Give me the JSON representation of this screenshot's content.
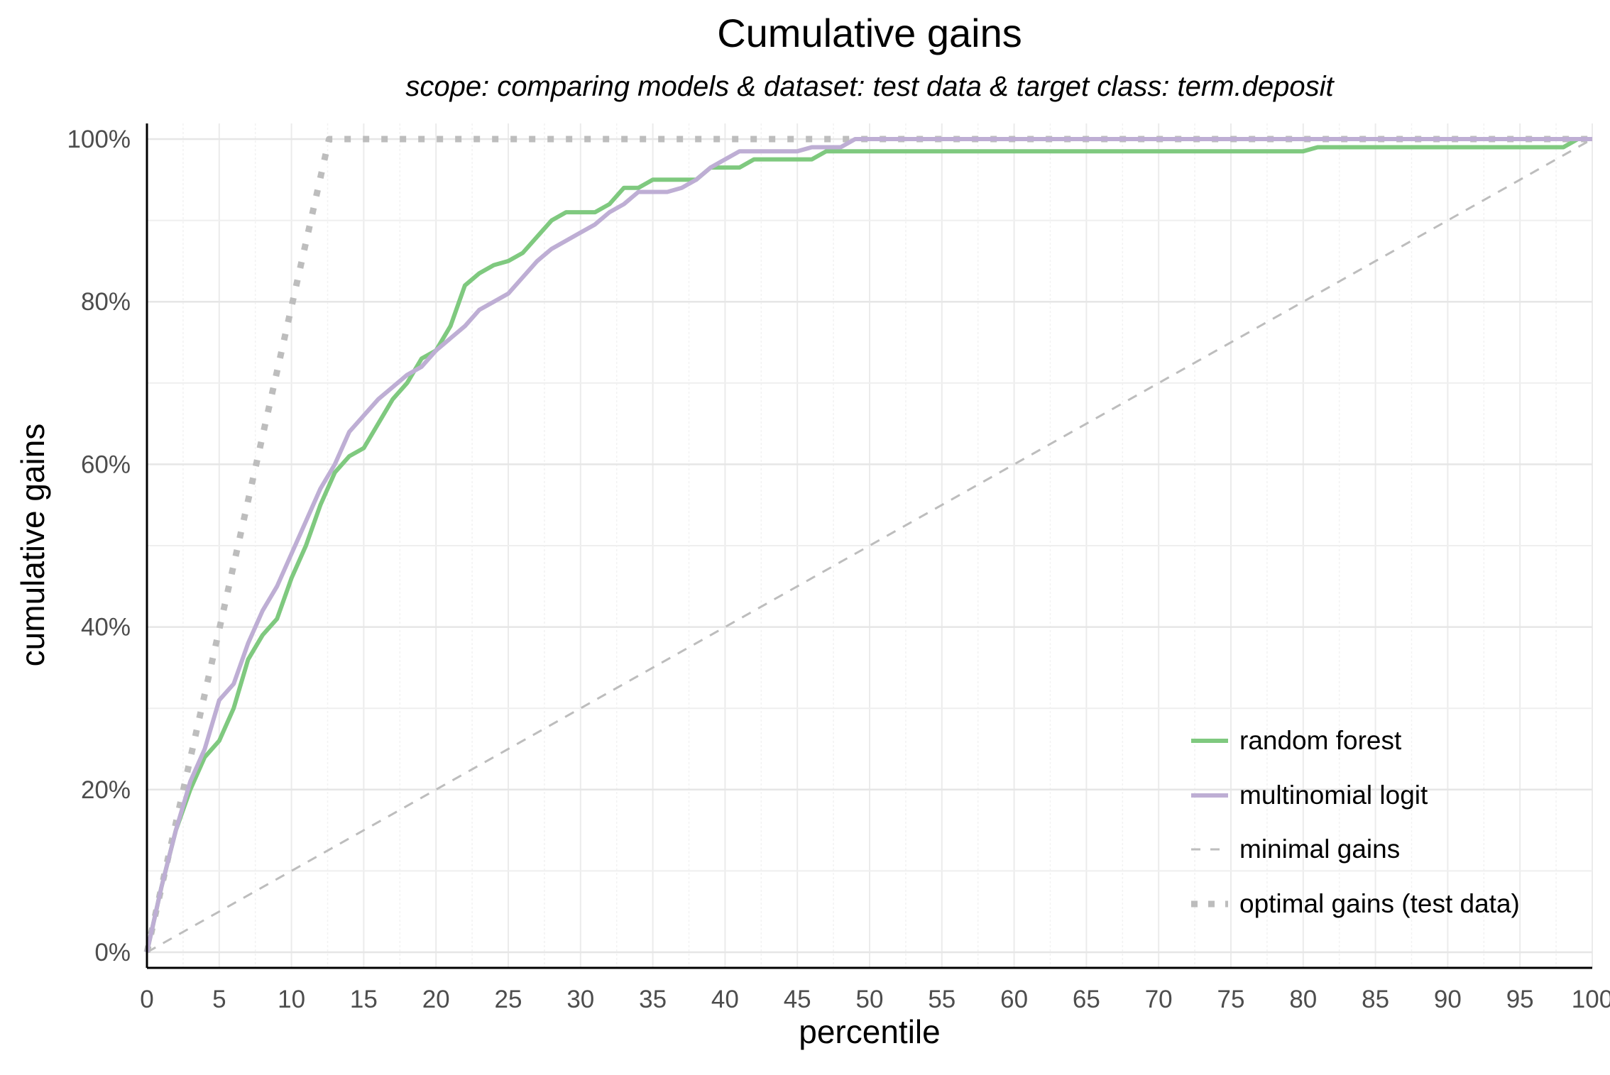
{
  "chart_data": {
    "type": "line",
    "title": "Cumulative gains",
    "subtitle": "scope: comparing models & dataset: test data & target class: term.deposit",
    "xlabel": "percentile",
    "ylabel": "cumulative gains",
    "xlim": [
      0,
      100
    ],
    "ylim": [
      0,
      1
    ],
    "x_ticks": [
      0,
      5,
      10,
      15,
      20,
      25,
      30,
      35,
      40,
      45,
      50,
      55,
      60,
      65,
      70,
      75,
      80,
      85,
      90,
      95,
      100
    ],
    "y_ticks": [
      0,
      0.2,
      0.4,
      0.6,
      0.8,
      1.0
    ],
    "y_tick_labels": [
      "0%",
      "20%",
      "40%",
      "60%",
      "80%",
      "100%"
    ],
    "grid": true,
    "legend_position": "bottom-right",
    "series": [
      {
        "name": "random forest",
        "color": "#7fc97f",
        "style": "solid",
        "x": [
          0,
          1,
          2,
          3,
          4,
          5,
          6,
          7,
          8,
          9,
          10,
          11,
          12,
          13,
          14,
          15,
          16,
          17,
          18,
          19,
          20,
          21,
          22,
          23,
          24,
          25,
          26,
          27,
          28,
          29,
          30,
          31,
          32,
          33,
          34,
          35,
          36,
          37,
          38,
          39,
          40,
          41,
          42,
          43,
          44,
          45,
          46,
          47,
          48,
          49,
          50,
          55,
          60,
          65,
          70,
          75,
          80,
          81,
          82,
          85,
          90,
          95,
          97,
          98,
          99,
          100
        ],
        "y": [
          0,
          0.08,
          0.15,
          0.2,
          0.24,
          0.26,
          0.3,
          0.36,
          0.39,
          0.41,
          0.46,
          0.5,
          0.55,
          0.59,
          0.61,
          0.62,
          0.65,
          0.68,
          0.7,
          0.73,
          0.74,
          0.77,
          0.82,
          0.835,
          0.845,
          0.85,
          0.86,
          0.88,
          0.9,
          0.91,
          0.91,
          0.91,
          0.92,
          0.94,
          0.94,
          0.95,
          0.95,
          0.95,
          0.95,
          0.965,
          0.965,
          0.965,
          0.975,
          0.975,
          0.975,
          0.975,
          0.975,
          0.985,
          0.985,
          0.985,
          0.985,
          0.985,
          0.985,
          0.985,
          0.985,
          0.985,
          0.985,
          0.99,
          0.99,
          0.99,
          0.99,
          0.99,
          0.99,
          0.99,
          1.0,
          1.0
        ]
      },
      {
        "name": "multinomial logit",
        "color": "#beaed4",
        "style": "solid",
        "x": [
          0,
          1,
          2,
          3,
          4,
          5,
          6,
          7,
          8,
          9,
          10,
          11,
          12,
          13,
          14,
          15,
          16,
          17,
          18,
          19,
          20,
          21,
          22,
          23,
          24,
          25,
          26,
          27,
          28,
          29,
          30,
          31,
          32,
          33,
          34,
          35,
          36,
          37,
          38,
          39,
          40,
          41,
          42,
          43,
          44,
          45,
          46,
          47,
          48,
          49,
          50,
          55,
          60,
          65,
          70,
          75,
          80,
          85,
          90,
          95,
          100
        ],
        "y": [
          0,
          0.08,
          0.15,
          0.21,
          0.25,
          0.31,
          0.33,
          0.38,
          0.42,
          0.45,
          0.49,
          0.53,
          0.57,
          0.6,
          0.64,
          0.66,
          0.68,
          0.695,
          0.71,
          0.72,
          0.74,
          0.755,
          0.77,
          0.79,
          0.8,
          0.81,
          0.83,
          0.85,
          0.865,
          0.875,
          0.885,
          0.895,
          0.91,
          0.92,
          0.935,
          0.935,
          0.935,
          0.94,
          0.95,
          0.965,
          0.975,
          0.985,
          0.985,
          0.985,
          0.985,
          0.985,
          0.99,
          0.99,
          0.99,
          1.0,
          1.0,
          1.0,
          1.0,
          1.0,
          1.0,
          1.0,
          1.0,
          1.0,
          1.0,
          1.0,
          1.0
        ]
      },
      {
        "name": "minimal gains",
        "color": "#bdbdbd",
        "style": "dashed",
        "x": [
          0,
          100
        ],
        "y": [
          0,
          1.0
        ]
      },
      {
        "name": "optimal gains (test data)",
        "color": "#bdbdbd",
        "style": "dotted",
        "x": [
          0,
          12.6,
          100
        ],
        "y": [
          0,
          1.0,
          1.0
        ]
      }
    ]
  }
}
